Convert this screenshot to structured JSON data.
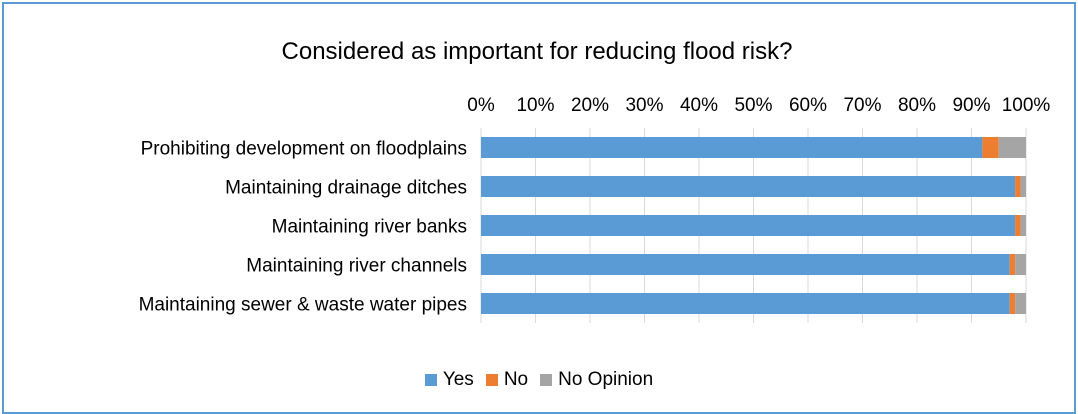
{
  "chart_data": {
    "type": "bar",
    "orientation": "horizontal",
    "stacked": "percent",
    "title": "Considered as important for reducing flood risk?",
    "categories": [
      "Prohibiting development on floodplains",
      "Maintaining drainage ditches",
      "Maintaining river banks",
      "Maintaining river channels",
      "Maintaining sewer & waste water pipes"
    ],
    "series": [
      {
        "name": "Yes",
        "color": "#5b9bd5",
        "values": [
          92,
          98,
          98,
          97,
          97
        ]
      },
      {
        "name": "No",
        "color": "#ed7d31",
        "values": [
          3,
          1,
          1,
          1,
          1
        ]
      },
      {
        "name": "No Opinion",
        "color": "#a5a5a5",
        "values": [
          5,
          1,
          1,
          2,
          2
        ]
      }
    ],
    "xlim": [
      0,
      100
    ],
    "x_ticks": [
      "0%",
      "10%",
      "20%",
      "30%",
      "40%",
      "50%",
      "60%",
      "70%",
      "80%",
      "90%",
      "100%"
    ],
    "x_axis_position": "top",
    "grid": true,
    "legend": "bottom"
  }
}
